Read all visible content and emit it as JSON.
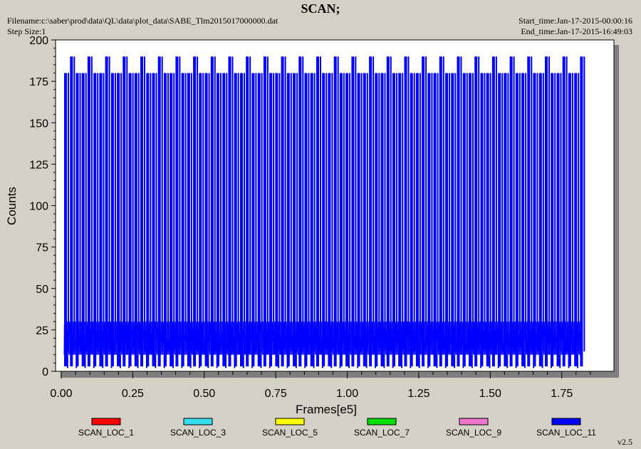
{
  "header": {
    "title": "SCAN;",
    "filename": "Filename:c:\\saber\\prod\\data\\QL\\data\\plot_data\\SABE_Tlm2015017000000.dat",
    "step_size": "Step Size:1",
    "start_time": "Start_time:Jan-17-2015-00:00:16",
    "end_time": "End_time:Jan-17-2015-16:49:03"
  },
  "version": "v2.5",
  "colors": {
    "background": "#d4d0c8",
    "plot_bg": "#ffffff",
    "main_series": "#0000ff"
  },
  "chart_data": {
    "type": "line",
    "title": "SCAN;",
    "xlabel": "Frames[e5]",
    "ylabel": "Counts",
    "xlim": [
      0,
      1.95
    ],
    "ylim": [
      0,
      200
    ],
    "x_ticks": [
      "0.00",
      "0.25",
      "0.50",
      "0.75",
      "1.00",
      "1.25",
      "1.50",
      "1.75"
    ],
    "y_ticks": [
      "0",
      "25",
      "50",
      "75",
      "100",
      "125",
      "150",
      "175",
      "200"
    ],
    "grid": false,
    "legend_position": "bottom",
    "series": [
      {
        "name": "SCAN_LOC_1",
        "color": "#ff0000"
      },
      {
        "name": "SCAN_LOC_3",
        "color": "#33ddee"
      },
      {
        "name": "SCAN_LOC_5",
        "color": "#ffff00"
      },
      {
        "name": "SCAN_LOC_7",
        "color": "#00dd00"
      },
      {
        "name": "SCAN_LOC_9",
        "color": "#ee77cc"
      },
      {
        "name": "SCAN_LOC_11",
        "color": "#0000ff",
        "description": "periodic scan: counts fluctuate 10-30 with spikes to ~180 and periodic peaks near 190",
        "baseline_range": [
          10,
          30
        ],
        "spike_level": 180,
        "peak_level": 190,
        "x_start": 0.01,
        "x_end": 1.82,
        "spike_period": 0.0205,
        "peak_period": 0.0615
      }
    ]
  }
}
